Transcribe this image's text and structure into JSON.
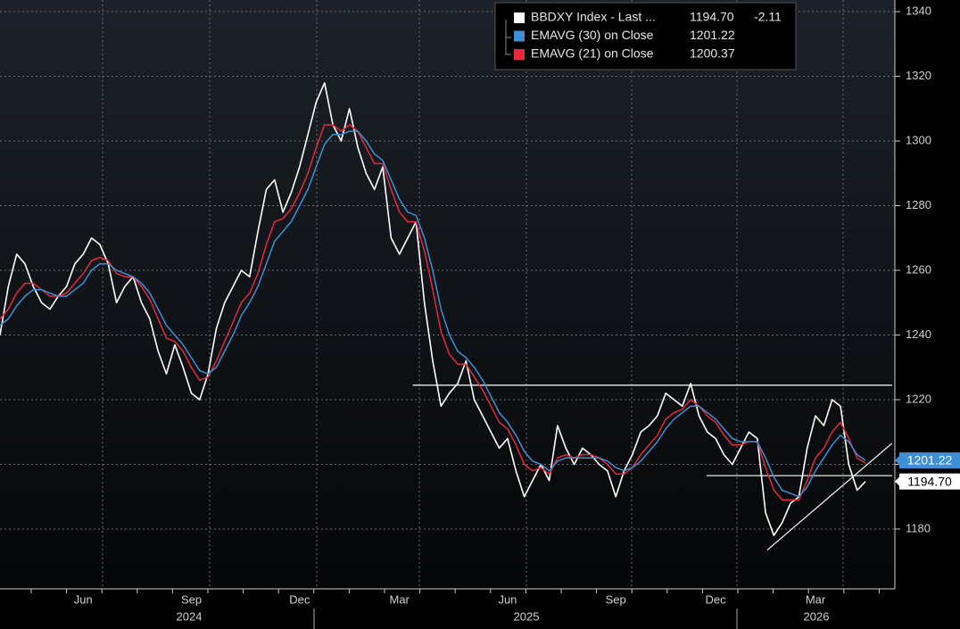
{
  "chart_data": {
    "type": "line",
    "categories": [
      null,
      null,
      null,
      null,
      null,
      null,
      null,
      null,
      null,
      null,
      "Jun",
      null,
      null,
      null,
      null,
      null,
      null,
      null,
      null,
      null,
      null,
      null,
      null,
      "Sep",
      null,
      null,
      null,
      null,
      null,
      null,
      null,
      null,
      null,
      null,
      null,
      null,
      "Dec",
      null,
      null,
      null,
      null,
      null,
      null,
      null,
      null,
      null,
      null,
      null,
      "Mar",
      null,
      null,
      null,
      null,
      null,
      null,
      null,
      null,
      null,
      null,
      null,
      null,
      "Jun",
      null,
      null,
      null,
      null,
      null,
      null,
      null,
      null,
      null,
      null,
      null,
      null,
      "Sep",
      null,
      null,
      null,
      null,
      null,
      null,
      null,
      null,
      null,
      null,
      null,
      "Dec",
      null,
      null,
      null,
      null,
      null,
      null,
      null,
      null,
      null,
      null,
      null,
      "Mar",
      null,
      null,
      null,
      null,
      null,
      null
    ],
    "x_groups": [
      "2024",
      "2025",
      "2026"
    ],
    "series": [
      {
        "name": "BBDXY Index - Last ...",
        "color": "#ffffff",
        "last_value_label": "1194.70",
        "change": -2.11,
        "values": [
          1240,
          1255,
          1265,
          1262,
          1255,
          1250,
          1248,
          1252,
          1255,
          1262,
          1265,
          1270,
          1268,
          1262,
          1250,
          1255,
          1258,
          1250,
          1245,
          1235,
          1228,
          1237,
          1230,
          1222,
          1220,
          1228,
          1242,
          1250,
          1255,
          1260,
          1258,
          1272,
          1285,
          1288,
          1278,
          1284,
          1292,
          1302,
          1312,
          1318,
          1305,
          1300,
          1310,
          1298,
          1290,
          1285,
          1292,
          1270,
          1265,
          1270,
          1275,
          1250,
          1232,
          1218,
          1222,
          1225,
          1232,
          1220,
          1215,
          1210,
          1205,
          1208,
          1198,
          1190,
          1195,
          1200,
          1195,
          1212,
          1205,
          1200,
          1205,
          1203,
          1200,
          1198,
          1190,
          1198,
          1203,
          1210,
          1212,
          1215,
          1222,
          1220,
          1218,
          1225,
          1215,
          1210,
          1208,
          1203,
          1200,
          1205,
          1210,
          1208,
          1185,
          1178,
          1182,
          1188,
          1190,
          1205,
          1215,
          1212,
          1220,
          1218,
          1200,
          1192,
          1194.7
        ]
      },
      {
        "name": "EMAVG (30)  on Close",
        "color": "#3d8fd6",
        "last_value_label": "1201.22",
        "values": [
          1243,
          1245,
          1249,
          1252,
          1254,
          1254,
          1253,
          1252,
          1252,
          1254,
          1256,
          1260,
          1262,
          1262,
          1260,
          1259,
          1258,
          1256,
          1253,
          1248,
          1243,
          1240,
          1237,
          1233,
          1229,
          1228,
          1230,
          1235,
          1240,
          1246,
          1250,
          1255,
          1262,
          1269,
          1272,
          1275,
          1280,
          1285,
          1292,
          1299,
          1302,
          1302,
          1303,
          1303,
          1300,
          1296,
          1294,
          1288,
          1282,
          1278,
          1277,
          1270,
          1260,
          1248,
          1240,
          1235,
          1233,
          1230,
          1226,
          1221,
          1216,
          1213,
          1209,
          1204,
          1201,
          1200,
          1198,
          1201,
          1202,
          1202,
          1202,
          1202,
          1202,
          1201,
          1199,
          1198,
          1199,
          1201,
          1204,
          1207,
          1211,
          1214,
          1216,
          1218,
          1218,
          1216,
          1214,
          1211,
          1208,
          1207,
          1207,
          1207,
          1202,
          1196,
          1192,
          1191,
          1190,
          1193,
          1198,
          1202,
          1206,
          1209,
          1207,
          1203,
          1201.22
        ]
      },
      {
        "name": "EMAVG (21)  on Close",
        "color": "#e8283a",
        "last_value_label": "1200.37",
        "values": [
          1245,
          1248,
          1253,
          1256,
          1256,
          1254,
          1252,
          1252,
          1253,
          1256,
          1259,
          1263,
          1264,
          1263,
          1259,
          1258,
          1258,
          1255,
          1251,
          1245,
          1239,
          1238,
          1235,
          1230,
          1226,
          1227,
          1232,
          1238,
          1244,
          1250,
          1253,
          1259,
          1268,
          1275,
          1276,
          1279,
          1284,
          1290,
          1298,
          1305,
          1305,
          1303,
          1305,
          1303,
          1298,
          1293,
          1293,
          1285,
          1278,
          1275,
          1275,
          1266,
          1254,
          1241,
          1234,
          1231,
          1231,
          1227,
          1223,
          1218,
          1213,
          1211,
          1206,
          1200,
          1198,
          1199,
          1197,
          1202,
          1203,
          1202,
          1203,
          1203,
          1202,
          1200,
          1197,
          1197,
          1199,
          1203,
          1206,
          1209,
          1214,
          1216,
          1217,
          1220,
          1218,
          1215,
          1213,
          1209,
          1206,
          1206,
          1207,
          1207,
          1199,
          1192,
          1189,
          1189,
          1189,
          1195,
          1202,
          1205,
          1210,
          1213,
          1208,
          1202,
          1200.37
        ]
      }
    ],
    "lines": [
      {
        "x": [
          49.6,
          107.2
        ],
        "y": [
          1224.5,
          1224.5
        ]
      },
      {
        "x": [
          84.9,
          107.2
        ],
        "y": [
          1196.5,
          1196.5
        ]
      },
      {
        "x": [
          92.2,
          107.2
        ],
        "y": [
          1173.5,
          1206.5
        ]
      }
    ],
    "ylim": [
      1161.5,
      1343.6
    ],
    "yticks": [
      1180,
      1200,
      1220,
      1240,
      1260,
      1280,
      1300,
      1320,
      1340
    ],
    "grid": true
  }
}
